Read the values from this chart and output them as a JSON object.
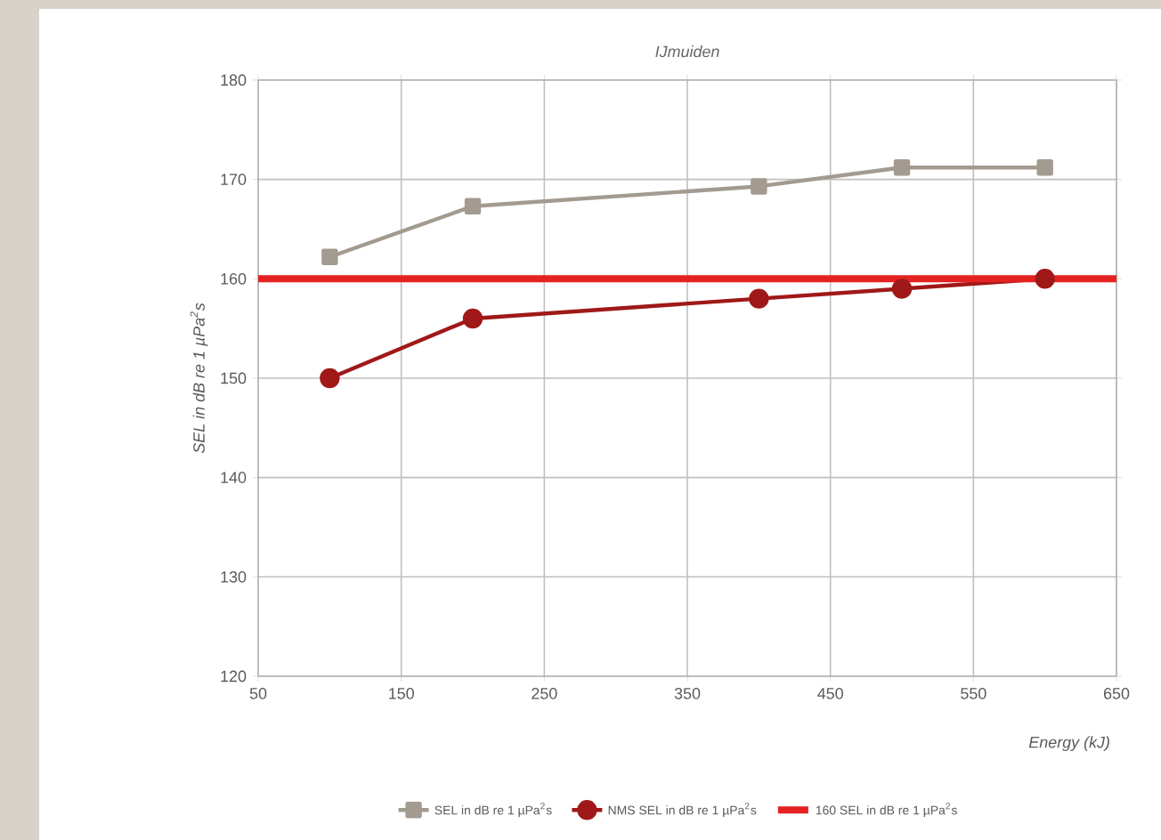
{
  "chart_data": {
    "type": "line",
    "title": "*IJmuiden*",
    "xlabel": "*Energy (kJ)*",
    "ylabel": "*SEL in dB re 1 µPa$^{2}$s*",
    "series": [
      {
        "name": "SEL in dB re 1 µPa$^{2}$s",
        "color": "#a39a90",
        "marker": "square",
        "x": [
          100,
          200,
          400,
          500,
          600
        ],
        "values": [
          162.2,
          167.3,
          169.3,
          171.2,
          171.2
        ]
      },
      {
        "name": "NMS SEL in dB re 1 µPa$^{2}$s",
        "color": "#a01818",
        "marker": "circle",
        "x": [
          100,
          200,
          400,
          500,
          600
        ],
        "values": [
          150,
          156,
          158,
          159,
          160
        ]
      },
      {
        "name": "160 SEL in dB re 1 µPa$^{2}$s",
        "color": "#e42222",
        "marker": "none",
        "x": [
          50,
          650
        ],
        "values": [
          160,
          160
        ]
      }
    ],
    "xlim": [
      50,
      650
    ],
    "ylim": [
      120,
      180
    ],
    "xticks": [
      50,
      150,
      250,
      350,
      450,
      550,
      650
    ],
    "yticks": [
      120,
      130,
      140,
      150,
      160,
      170,
      180
    ],
    "grid": true,
    "legend": "bottom"
  }
}
